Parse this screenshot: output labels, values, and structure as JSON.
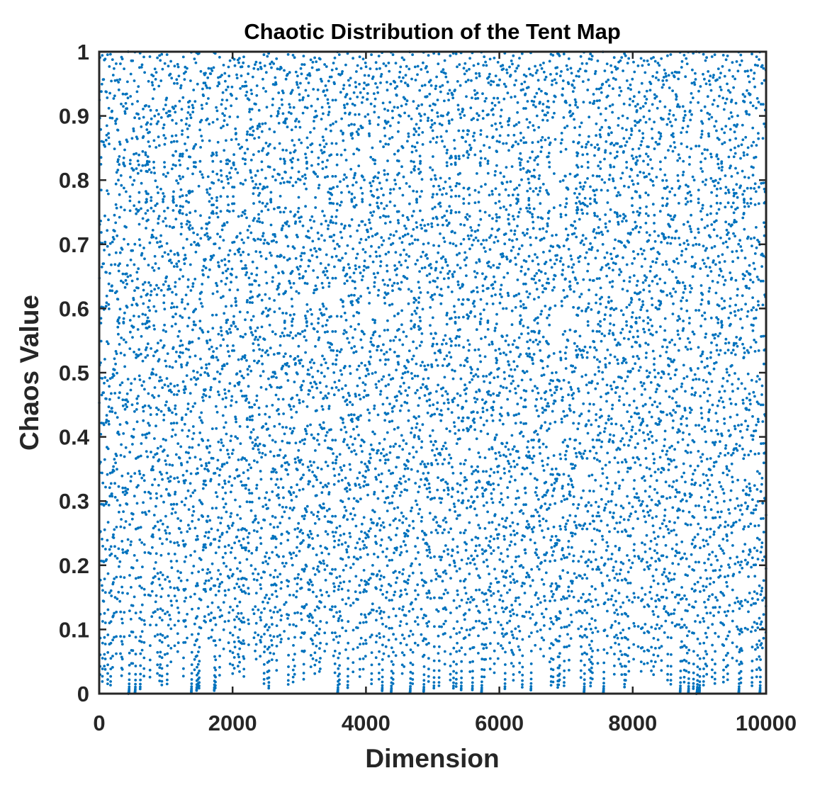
{
  "chart_data": {
    "type": "scatter",
    "title": "Chaotic Distribution of the Tent Map",
    "xlabel": "Dimension",
    "ylabel": "Chaos Value",
    "xlim": [
      0,
      10000
    ],
    "ylim": [
      0,
      1
    ],
    "x_ticks": [
      "0",
      "2000",
      "4000",
      "6000",
      "8000",
      "10000"
    ],
    "y_ticks": [
      "0",
      "0.1",
      "0.2",
      "0.3",
      "0.4",
      "0.5",
      "0.6",
      "0.7",
      "0.8",
      "0.9",
      "1"
    ],
    "x_tick_values": [
      0,
      2000,
      4000,
      6000,
      8000,
      10000
    ],
    "y_tick_values": [
      0,
      0.1,
      0.2,
      0.3,
      0.4,
      0.5,
      0.6,
      0.7,
      0.8,
      0.9,
      1
    ],
    "series": [
      {
        "color": "#0072BD",
        "marker": "dot",
        "point_count": 10000,
        "generator": "tent map x(n+1) = x(n)/0.7 if x(n) < 0.7, else (1 - x(n))/0.3",
        "x_range": [
          1,
          10000
        ],
        "y_range": [
          0,
          1
        ]
      }
    ],
    "grid": false,
    "box": true,
    "legend": "none"
  }
}
